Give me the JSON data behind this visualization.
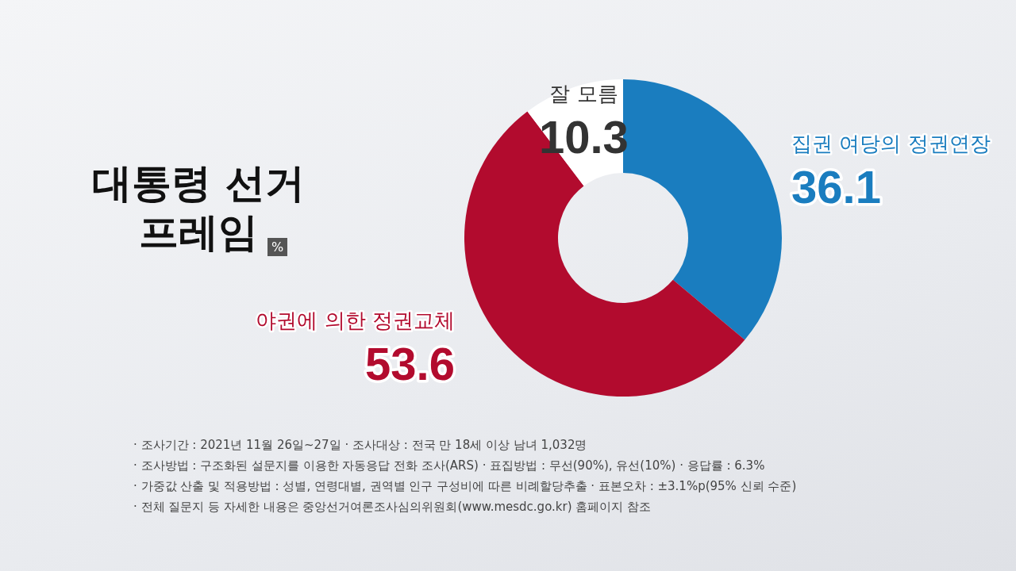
{
  "chart_data": {
    "type": "donut",
    "title": "대통령 선거 프레임",
    "subtitle": "%",
    "categories": [
      "집권 여당의 정권연장",
      "야권에 의한 정권교체",
      "잘 모름"
    ],
    "values": [
      36.1,
      53.6,
      10.3
    ],
    "colors": [
      "#1a7dbf",
      "#b20b2e",
      "#ffffff"
    ],
    "data_labels": true,
    "legend": false,
    "annotations": [
      "· 조사기간 : 2021년 11월 26일~27일 · 조사대상 : 전국 만 18세 이상 남녀 1,032명",
      "· 조사방법 : 구조화된 설문지를 이용한 자동응답 전화 조사(ARS) · 표집방법 : 무선(90%), 유선(10%) · 응답률 : 6.3%",
      "· 가중값 산출 및 적용방법 : 성별, 연령대별, 권역별 인구 구성비에 따른 비례할당추출 · 표본오차 : ±3.1%p(95% 신뢰 수준)",
      "· 전체 질문지 등 자세한 내용은 중앙선거여론조사심의위원회(www.mesdc.go.kr) 홈페이지 참조"
    ]
  }
}
